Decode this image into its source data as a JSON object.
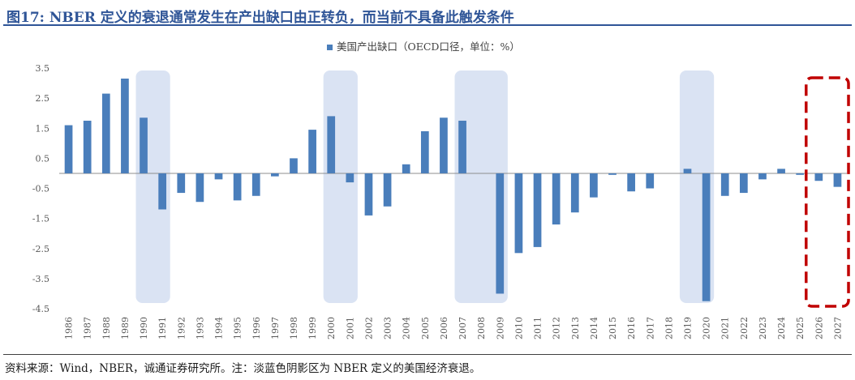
{
  "header": {
    "title": "图17:  NBER 定义的衰退通常发生在产出缺口由正转负，而当前不具备此触发条件"
  },
  "footer": {
    "source": "资料来源：Wind，NBER，诚通证券研究所。注：淡蓝色阴影区为 NBER 定义的美国经济衰退。"
  },
  "colors": {
    "accent": "#2f5597",
    "bar": "#4a7ebb",
    "recession_shade": "#dae3f3",
    "highlight_box": "#c00000"
  },
  "chart_data": {
    "type": "bar",
    "legend": {
      "label": "美国产出缺口（OECD口径，单位：%）",
      "placement": "top-center"
    },
    "ylim": [
      -4.5,
      3.5
    ],
    "yticks": [
      "3.5",
      "2.5",
      "1.5",
      "0.5",
      "-0.5",
      "-1.5",
      "-2.5",
      "-3.5",
      "-4.5"
    ],
    "ytick_values": [
      3.5,
      2.5,
      1.5,
      0.5,
      -0.5,
      -1.5,
      -2.5,
      -3.5,
      -4.5
    ],
    "grid": false,
    "categories": [
      "1986",
      "1987",
      "1988",
      "1989",
      "1990",
      "1991",
      "1992",
      "1993",
      "1994",
      "1995",
      "1996",
      "1997",
      "1998",
      "1999",
      "2000",
      "2001",
      "2002",
      "2003",
      "2004",
      "2005",
      "2006",
      "2007",
      "2008",
      "2009",
      "2010",
      "2011",
      "2012",
      "2013",
      "2014",
      "2015",
      "2016",
      "2017",
      "2018",
      "2019",
      "2020",
      "2021",
      "2022",
      "2023",
      "2024",
      "2025",
      "2026",
      "2027"
    ],
    "series": [
      {
        "name": "美国产出缺口（OECD口径，单位：%）",
        "values": [
          1.6,
          1.75,
          2.65,
          3.15,
          1.85,
          -1.2,
          -0.65,
          -0.95,
          -0.2,
          -0.9,
          -0.75,
          -0.1,
          0.5,
          1.45,
          1.9,
          -0.3,
          -1.4,
          -1.1,
          0.3,
          1.4,
          1.85,
          1.75,
          0.0,
          -4.0,
          -2.65,
          -2.45,
          -1.7,
          -1.3,
          -0.8,
          -0.05,
          -0.6,
          -0.5,
          0.0,
          0.15,
          -4.25,
          -0.75,
          -0.65,
          -0.2,
          0.15,
          -0.05,
          -0.25,
          -0.45
        ]
      }
    ],
    "recession_shading": [
      [
        "1990",
        "1991"
      ],
      [
        "2000",
        "2001"
      ],
      [
        "2007",
        "2009"
      ],
      [
        "2019",
        "2020"
      ]
    ],
    "highlight_range": [
      "2026",
      "2027"
    ]
  }
}
